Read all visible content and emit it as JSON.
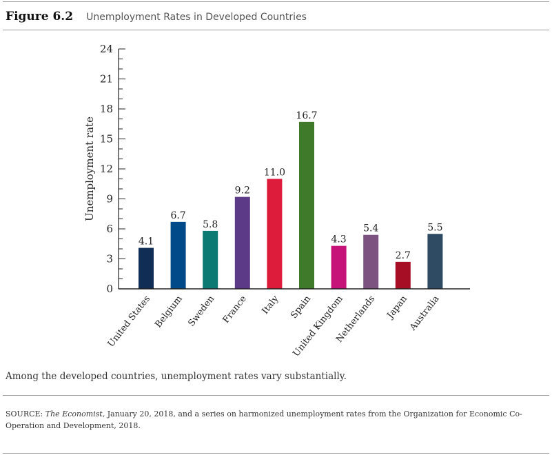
{
  "figure": {
    "label": "Figure 6.2",
    "title": "Unemployment Rates in Developed Countries"
  },
  "caption": "Among the developed countries, unemployment rates vary substantially.",
  "source": {
    "label": "SOURCE:",
    "publication": "The Economist,",
    "text": " January 20, 2018, and a series on harmonized unemployment rates from the Organization for Economic Co-Operation and Development, 2018."
  },
  "chart_data": {
    "type": "bar",
    "title": "Unemployment Rates in Developed Countries",
    "xlabel": "",
    "ylabel": "Unemployment rate",
    "ylim": [
      0,
      24
    ],
    "yticks": [
      0,
      3,
      6,
      9,
      12,
      15,
      18,
      21,
      24
    ],
    "grid": false,
    "categories": [
      "United States",
      "Belgium",
      "Sweden",
      "France",
      "Italy",
      "Spain",
      "United Kingdom",
      "Netherlands",
      "Japan",
      "Australia"
    ],
    "values": [
      4.1,
      6.7,
      5.8,
      9.2,
      11.0,
      16.7,
      4.3,
      5.4,
      2.7,
      5.5
    ],
    "value_labels": [
      "4.1",
      "6.7",
      "5.8",
      "9.2",
      "11.0",
      "16.7",
      "4.3",
      "5.4",
      "2.7",
      "5.5"
    ],
    "colors": [
      "#0f2d55",
      "#004a8a",
      "#0a7a72",
      "#5d3a88",
      "#dd1b3a",
      "#3f7a2a",
      "#c5137a",
      "#7b5280",
      "#a50e25",
      "#2f4a63"
    ]
  }
}
